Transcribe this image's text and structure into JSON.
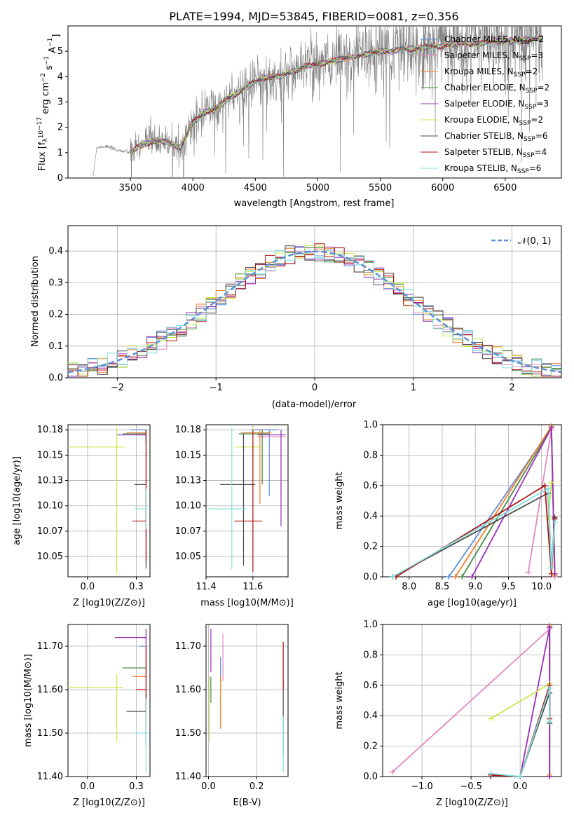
{
  "figure_title": "PLATE=1994, MJD=53845, FIBERID=0081, z=0.356",
  "colors": {
    "Chabrier MILES": "#5f8fd8",
    "Salpeter MILES": "#e387c3",
    "Kroupa MILES": "#f07f2a",
    "Chabrier ELODIE": "#4a8a4a",
    "Salpeter ELODIE": "#9b30b8",
    "Kroupa ELODIE": "#c7e84a",
    "Chabrier STELIB": "#4a4a4a",
    "Salpeter STELIB": "#b01010",
    "Kroupa STELIB": "#7fe0e0",
    "data": "#808080",
    "normal": "#5b8fd6"
  },
  "chart_data": [
    {
      "id": "spectrum",
      "type": "line",
      "xlabel": "wavelength [Angstrom, rest frame]",
      "ylabel": "Flux [f_λ 10^-17 erg cm^-2 s^-1 A^-1]",
      "xlim": [
        3000,
        6950
      ],
      "ylim": [
        0,
        6
      ],
      "xticks": [
        3500,
        4000,
        4500,
        5000,
        5500,
        6000,
        6500
      ],
      "yticks": [
        0,
        1,
        2,
        3,
        4,
        5
      ],
      "legend_position": "upper-right",
      "legend": [
        {
          "model": "Chabrier MILES",
          "n": "2"
        },
        {
          "model": "Salpeter MILES",
          "n": "3"
        },
        {
          "model": "Kroupa MILES",
          "n": "2"
        },
        {
          "model": "Chabrier ELODIE",
          "n": "2"
        },
        {
          "model": "Salpeter ELODIE",
          "n": "3"
        },
        {
          "model": "Kroupa ELODIE",
          "n": "2"
        },
        {
          "model": "Chabrier STELIB",
          "n": "6"
        },
        {
          "model": "Salpeter STELIB",
          "n": "4"
        },
        {
          "model": "Kroupa STELIB",
          "n": "6"
        }
      ],
      "continuum": {
        "x": [
          3200,
          3230,
          3300,
          3400,
          3500,
          3550,
          3700,
          3800,
          3900,
          4000,
          4100,
          4200,
          4300,
          4400,
          4500,
          4600,
          4700,
          4800,
          4900,
          5000,
          5100,
          5200,
          5300,
          5400,
          5500,
          5600,
          5700,
          5800,
          5900,
          6000,
          6100,
          6200,
          6300,
          6400,
          6500,
          6600,
          6700,
          6800
        ],
        "y": [
          0.0,
          1.2,
          1.25,
          1.1,
          1.0,
          1.2,
          1.5,
          1.4,
          1.2,
          2.2,
          2.6,
          2.8,
          3.2,
          3.5,
          3.8,
          4.0,
          4.0,
          4.2,
          4.4,
          4.5,
          4.6,
          4.7,
          4.8,
          4.9,
          5.0,
          5.0,
          5.1,
          5.1,
          5.2,
          5.2,
          5.3,
          5.3,
          5.3,
          5.4,
          5.4,
          5.4,
          5.5,
          5.5
        ]
      },
      "data_start": 3200,
      "noise_start": 3500
    },
    {
      "id": "residuals",
      "type": "line",
      "xlabel": "(data-model)/error",
      "ylabel": "Normed distribution",
      "xlim": [
        -2.5,
        2.5
      ],
      "ylim": [
        0,
        0.48
      ],
      "xticks": [
        -2,
        -1,
        0,
        1,
        2
      ],
      "yticks": [
        0.0,
        0.1,
        0.2,
        0.3,
        0.4
      ],
      "grid": true,
      "legend_label": "𝒩(0, 1)",
      "legend_position": "upper-right",
      "bin_width": 0.1
    },
    {
      "id": "z_age",
      "type": "scatter",
      "xlabel": "Z [log10(Z/Z⊙)]",
      "ylabel": "age  [log10(age/yr)]",
      "xlim": [
        -0.1,
        0.32
      ],
      "ylim": [
        10.03,
        10.18
      ],
      "xticks": [
        0.0,
        0.25
      ],
      "yticks": [
        10.05,
        10.075,
        10.1,
        10.125,
        10.15,
        10.175
      ],
      "grid": true,
      "points": [
        {
          "model": "Chabrier MILES",
          "x": 0.3,
          "y": 10.175,
          "xerr": [
            0.08,
            0.0
          ],
          "yerr": [
            0.01,
            0.0
          ]
        },
        {
          "model": "Salpeter MILES",
          "x": 0.3,
          "y": 10.17,
          "xerr": [
            0.05,
            0.0
          ],
          "yerr": [
            0.01,
            0.005
          ]
        },
        {
          "model": "Kroupa MILES",
          "x": 0.3,
          "y": 10.172,
          "xerr": [
            0.1,
            0.0
          ],
          "yerr": [
            0.01,
            0.003
          ]
        },
        {
          "model": "Chabrier ELODIE",
          "x": 0.3,
          "y": 10.171,
          "xerr": [
            0.12,
            0.0
          ],
          "yerr": [
            0.01,
            0.004
          ]
        },
        {
          "model": "Salpeter ELODIE",
          "x": 0.3,
          "y": 10.17,
          "xerr": [
            0.15,
            0.0
          ],
          "yerr": [
            0.01,
            0.005
          ]
        },
        {
          "model": "Kroupa ELODIE",
          "x": 0.15,
          "y": 10.158,
          "xerr": [
            0.25,
            0.04
          ],
          "yerr": [
            0.125,
            0.02
          ]
        },
        {
          "model": "Chabrier STELIB",
          "x": 0.3,
          "y": 10.121,
          "xerr": [
            0.06,
            0.0
          ],
          "yerr": [
            0.083,
            0.05
          ]
        },
        {
          "model": "Salpeter STELIB",
          "x": 0.3,
          "y": 10.085,
          "xerr": [
            0.07,
            0.0
          ],
          "yerr": [
            0.04,
            0.09
          ]
        },
        {
          "model": "Kroupa STELIB",
          "x": 0.3,
          "y": 10.097,
          "xerr": [
            0.06,
            0.0
          ],
          "yerr": [
            0.02,
            0.02
          ]
        }
      ]
    },
    {
      "id": "mass_age",
      "type": "scatter",
      "xlabel": "mass [log10(M/M⊙)]",
      "ylabel": "",
      "xlim": [
        11.4,
        11.75
      ],
      "ylim": [
        10.03,
        10.18
      ],
      "xticks": [
        11.4,
        11.6
      ],
      "yticks": [
        10.05,
        10.075,
        10.1,
        10.125,
        10.15,
        10.175
      ],
      "grid": true,
      "points": [
        {
          "model": "Chabrier MILES",
          "x": 11.67,
          "y": 10.175,
          "xerr": [
            0.08,
            0.04
          ],
          "yerr": [
            0.065,
            0.0
          ]
        },
        {
          "model": "Salpeter MILES",
          "x": 11.72,
          "y": 10.168,
          "xerr": [
            0.1,
            0.02
          ],
          "yerr": [
            0.06,
            0.005
          ]
        },
        {
          "model": "Kroupa MILES",
          "x": 11.63,
          "y": 10.172,
          "xerr": [
            0.08,
            0.05
          ],
          "yerr": [
            0.07,
            0.003
          ]
        },
        {
          "model": "Chabrier ELODIE",
          "x": 11.64,
          "y": 10.171,
          "xerr": [
            0.1,
            0.03
          ],
          "yerr": [
            0.05,
            0.004
          ]
        },
        {
          "model": "Salpeter ELODIE",
          "x": 11.72,
          "y": 10.17,
          "xerr": [
            0.1,
            0.02
          ],
          "yerr": [
            0.09,
            0.005
          ]
        },
        {
          "model": "Kroupa ELODIE",
          "x": 11.6,
          "y": 10.158,
          "xerr": [
            0.08,
            0.04
          ],
          "yerr": [
            0.04,
            0.02
          ]
        },
        {
          "model": "Chabrier STELIB",
          "x": 11.56,
          "y": 10.121,
          "xerr": [
            0.1,
            0.05
          ],
          "yerr": [
            0.08,
            0.05
          ]
        },
        {
          "model": "Salpeter STELIB",
          "x": 11.6,
          "y": 10.085,
          "xerr": [
            0.08,
            0.04
          ],
          "yerr": [
            0.05,
            0.09
          ]
        },
        {
          "model": "Kroupa STELIB",
          "x": 11.51,
          "y": 10.097,
          "xerr": [
            0.1,
            0.06
          ],
          "yerr": [
            0.06,
            0.08
          ]
        }
      ]
    },
    {
      "id": "age_weight",
      "type": "line",
      "xlabel": "age  [log10(age/yr)]",
      "ylabel": "mass weight",
      "xlim": [
        7.6,
        10.3
      ],
      "ylim": [
        0,
        1.0
      ],
      "xticks": [
        8.0,
        8.5,
        9.0,
        9.5,
        10.0
      ],
      "yticks": [
        0.0,
        0.2,
        0.4,
        0.6,
        0.8,
        1.0
      ],
      "grid": true,
      "series": [
        {
          "model": "Chabrier MILES",
          "x": [
            8.6,
            10.15,
            10.2
          ],
          "y": [
            0.0,
            0.98,
            0.02
          ]
        },
        {
          "model": "Salpeter MILES",
          "x": [
            9.8,
            10.15,
            10.2
          ],
          "y": [
            0.03,
            0.97,
            0.0
          ]
        },
        {
          "model": "Kroupa MILES",
          "x": [
            8.7,
            10.15,
            10.2
          ],
          "y": [
            0.0,
            0.99,
            0.01
          ]
        },
        {
          "model": "Chabrier ELODIE",
          "x": [
            8.8,
            10.15,
            10.2
          ],
          "y": [
            0.0,
            0.98,
            0.02
          ]
        },
        {
          "model": "Salpeter ELODIE",
          "x": [
            8.95,
            10.15,
            10.2
          ],
          "y": [
            0.0,
            0.98,
            0.02
          ]
        },
        {
          "model": "Kroupa ELODIE",
          "x": [
            10.1,
            10.15
          ],
          "y": [
            0.38,
            0.62
          ]
        },
        {
          "model": "Chabrier STELIB",
          "x": [
            7.75,
            10.1,
            10.15,
            10.2
          ],
          "y": [
            0.0,
            0.55,
            0.06,
            0.39
          ]
        },
        {
          "model": "Salpeter STELIB",
          "x": [
            7.8,
            10.05,
            10.15,
            10.2
          ],
          "y": [
            0.0,
            0.6,
            0.02,
            0.38
          ]
        },
        {
          "model": "Kroupa STELIB",
          "x": [
            7.75,
            10.1,
            10.15,
            10.2
          ],
          "y": [
            0.0,
            0.58,
            0.06,
            0.36
          ]
        }
      ]
    },
    {
      "id": "z_mass",
      "type": "scatter",
      "xlabel": "Z [log10(Z/Z⊙)]",
      "ylabel": "mass [log10(M/M⊙)]",
      "xlim": [
        -0.1,
        0.32
      ],
      "ylim": [
        11.4,
        11.75
      ],
      "xticks": [
        0.0,
        0.25
      ],
      "yticks": [
        11.4,
        11.5,
        11.6,
        11.7
      ],
      "grid": true,
      "points": [
        {
          "model": "Chabrier MILES",
          "x": 0.3,
          "y": 11.7,
          "xerr": [
            0.04,
            0.0
          ],
          "yerr": [
            0.04,
            0.02
          ]
        },
        {
          "model": "Salpeter MILES",
          "x": 0.3,
          "y": 11.72,
          "xerr": [
            0.05,
            0.0
          ],
          "yerr": [
            0.1,
            0.02
          ]
        },
        {
          "model": "Kroupa MILES",
          "x": 0.3,
          "y": 11.63,
          "xerr": [
            0.07,
            0.0
          ],
          "yerr": [
            0.12,
            0.05
          ]
        },
        {
          "model": "Chabrier ELODIE",
          "x": 0.3,
          "y": 11.65,
          "xerr": [
            0.12,
            0.0
          ],
          "yerr": [
            0.03,
            0.02
          ]
        },
        {
          "model": "Salpeter ELODIE",
          "x": 0.3,
          "y": 11.72,
          "xerr": [
            0.16,
            0.0
          ],
          "yerr": [
            0.05,
            0.02
          ]
        },
        {
          "model": "Kroupa ELODIE",
          "x": 0.15,
          "y": 11.605,
          "xerr": [
            0.25,
            0.03
          ],
          "yerr": [
            0.125,
            0.03
          ]
        },
        {
          "model": "Chabrier STELIB",
          "x": 0.3,
          "y": 11.55,
          "xerr": [
            0.1,
            0.0
          ],
          "yerr": [
            0.08,
            0.05
          ]
        },
        {
          "model": "Salpeter STELIB",
          "x": 0.3,
          "y": 11.6,
          "xerr": [
            0.05,
            0.0
          ],
          "yerr": [
            0.05,
            0.1
          ]
        },
        {
          "model": "Kroupa STELIB",
          "x": 0.3,
          "y": 11.5,
          "xerr": [
            0.06,
            0.0
          ],
          "yerr": [
            0.09,
            0.08
          ]
        }
      ]
    },
    {
      "id": "ebv_mass",
      "type": "scatter",
      "xlabel": "E(B-V)",
      "ylabel": "",
      "xlim": [
        -0.01,
        0.33
      ],
      "ylim": [
        11.4,
        11.75
      ],
      "xticks": [
        0.0,
        0.2
      ],
      "yticks": [
        11.4,
        11.5,
        11.6,
        11.7
      ],
      "grid": true,
      "points": [
        {
          "model": "Chabrier MILES",
          "x": 0.05,
          "y": 11.645,
          "yerr": [
            0.03,
            0.03
          ]
        },
        {
          "model": "Salpeter MILES",
          "x": 0.06,
          "y": 11.68,
          "yerr": [
            0.06,
            0.05
          ]
        },
        {
          "model": "Kroupa MILES",
          "x": 0.05,
          "y": 11.57,
          "yerr": [
            0.06,
            0.06
          ]
        },
        {
          "model": "Chabrier ELODIE",
          "x": 0.01,
          "y": 11.6,
          "yerr": [
            0.03,
            0.03
          ]
        },
        {
          "model": "Salpeter ELODIE",
          "x": 0.01,
          "y": 11.69,
          "yerr": [
            0.05,
            0.05
          ]
        },
        {
          "model": "Kroupa ELODIE",
          "x": 0.005,
          "y": 11.56,
          "yerr": [
            0.08,
            0.07
          ]
        },
        {
          "model": "Chabrier STELIB",
          "x": 0.31,
          "y": 11.54,
          "yerr": [
            0.09,
            0.08
          ]
        },
        {
          "model": "Salpeter STELIB",
          "x": 0.31,
          "y": 11.66,
          "yerr": [
            0.06,
            0.05
          ]
        },
        {
          "model": "Kroupa STELIB",
          "x": 0.31,
          "y": 11.48,
          "yerr": [
            0.07,
            0.06
          ]
        }
      ]
    },
    {
      "id": "z_weight",
      "type": "line",
      "xlabel": "Z [log10(Z/Z⊙)]",
      "ylabel": "mass weight",
      "xlim": [
        -1.4,
        0.42
      ],
      "ylim": [
        0,
        1.0
      ],
      "xticks": [
        -1.0,
        -0.5,
        0.0
      ],
      "yticks": [
        0.0,
        0.2,
        0.4,
        0.6,
        0.8,
        1.0
      ],
      "grid": true,
      "series": [
        {
          "model": "Chabrier MILES",
          "x": [
            0.3,
            0.3
          ],
          "y": [
            0.0,
            0.99
          ]
        },
        {
          "model": "Salpeter MILES",
          "x": [
            -1.3,
            0.3,
            0.3
          ],
          "y": [
            0.03,
            0.97,
            0.0
          ]
        },
        {
          "model": "Kroupa MILES",
          "x": [
            0.3,
            0.3
          ],
          "y": [
            0.01,
            0.99
          ]
        },
        {
          "model": "Chabrier ELODIE",
          "x": [
            0.3,
            0.3
          ],
          "y": [
            0.0,
            0.98
          ]
        },
        {
          "model": "Salpeter ELODIE",
          "x": [
            0.0,
            0.3,
            0.3
          ],
          "y": [
            0.0,
            0.98,
            0.0
          ]
        },
        {
          "model": "Kroupa ELODIE",
          "x": [
            -0.3,
            0.3
          ],
          "y": [
            0.38,
            0.61
          ]
        },
        {
          "model": "Chabrier STELIB",
          "x": [
            -0.3,
            0.0,
            0.3,
            0.3
          ],
          "y": [
            0.0,
            0.0,
            0.55,
            0.35
          ]
        },
        {
          "model": "Salpeter STELIB",
          "x": [
            -0.3,
            0.0,
            0.3,
            0.3
          ],
          "y": [
            0.01,
            0.0,
            0.6,
            0.38
          ]
        },
        {
          "model": "Kroupa STELIB",
          "x": [
            -0.3,
            0.0,
            0.3,
            0.3
          ],
          "y": [
            0.02,
            0.0,
            0.58,
            0.36
          ]
        }
      ]
    }
  ]
}
